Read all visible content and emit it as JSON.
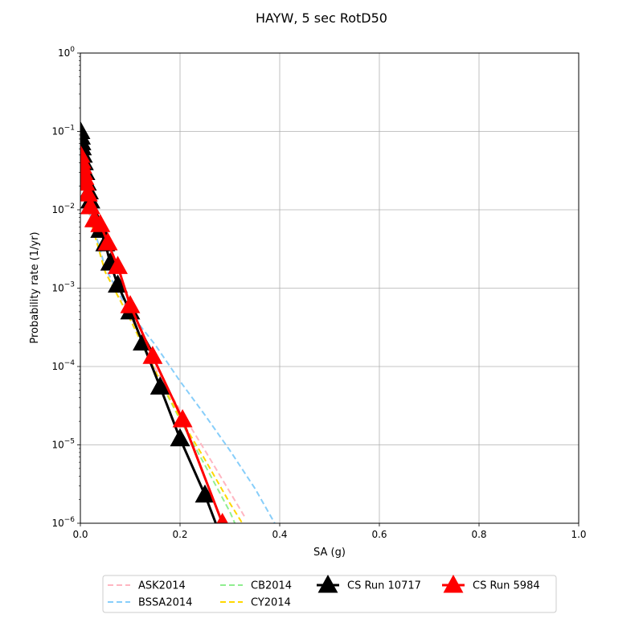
{
  "chart_data": {
    "type": "line",
    "title": "HAYW, 5 sec RotD50",
    "xlabel": "SA (g)",
    "ylabel": "Probability rate (1/yr)",
    "xscale": "linear",
    "yscale": "log",
    "xlim": [
      0,
      1.0
    ],
    "ylim": [
      1e-06,
      1
    ],
    "grid": true,
    "legend_position": "bottom-center",
    "x_ticks": [
      {
        "value": 0.0,
        "label": "0.0"
      },
      {
        "value": 0.2,
        "label": "0.2"
      },
      {
        "value": 0.4,
        "label": "0.4"
      },
      {
        "value": 0.6,
        "label": "0.6"
      },
      {
        "value": 0.8,
        "label": "0.8"
      },
      {
        "value": 1.0,
        "label": "1.0"
      }
    ],
    "y_ticks": [
      {
        "value": 1,
        "base": "10",
        "exp": "0"
      },
      {
        "value": 0.1,
        "base": "10",
        "exp": "−1"
      },
      {
        "value": 0.01,
        "base": "10",
        "exp": "−2"
      },
      {
        "value": 0.001,
        "base": "10",
        "exp": "−3"
      },
      {
        "value": 0.0001,
        "base": "10",
        "exp": "−4"
      },
      {
        "value": 1e-05,
        "base": "10",
        "exp": "−5"
      },
      {
        "value": 1e-06,
        "base": "10",
        "exp": "−6"
      }
    ],
    "series": [
      {
        "name": "ASK2014",
        "color": "#ffb6c1",
        "style": "dashed",
        "marker": "none",
        "x": [
          0.005,
          0.02,
          0.05,
          0.1,
          0.15,
          0.2,
          0.25,
          0.3,
          0.33
        ],
        "y": [
          0.025,
          0.0085,
          0.0018,
          0.00045,
          9.5e-05,
          2.8e-05,
          8.5e-06,
          2.5e-06,
          1.2e-06
        ]
      },
      {
        "name": "BSSA2014",
        "color": "#87cefa",
        "style": "dashed",
        "marker": "none",
        "x": [
          0.005,
          0.02,
          0.05,
          0.1,
          0.15,
          0.2,
          0.25,
          0.3,
          0.35,
          0.39
        ],
        "y": [
          0.025,
          0.0085,
          0.0018,
          0.00048,
          0.00019,
          6.5e-05,
          2.4e-05,
          8.5e-06,
          2.8e-06,
          1e-06
        ]
      },
      {
        "name": "CB2014",
        "color": "#90ee90",
        "style": "dashed",
        "marker": "none",
        "x": [
          0.005,
          0.02,
          0.05,
          0.1,
          0.15,
          0.2,
          0.25,
          0.3,
          0.31
        ],
        "y": [
          0.022,
          0.0075,
          0.0016,
          0.0004,
          8.5e-05,
          2.1e-05,
          5.5e-06,
          1.4e-06,
          1e-06
        ]
      },
      {
        "name": "CY2014",
        "color": "#ffd700",
        "style": "dashed",
        "marker": "none",
        "x": [
          0.005,
          0.02,
          0.05,
          0.1,
          0.15,
          0.2,
          0.25,
          0.3,
          0.325
        ],
        "y": [
          0.022,
          0.0075,
          0.0016,
          0.0004,
          8.8e-05,
          2.2e-05,
          6.5e-06,
          1.8e-06,
          1e-06
        ]
      },
      {
        "name": "CS Run 10717",
        "color": "#000000",
        "style": "solid",
        "marker": "triangle",
        "x": [
          0.0,
          0.001,
          0.002,
          0.003,
          0.005,
          0.007,
          0.01,
          0.013,
          0.017,
          0.02,
          0.03,
          0.04,
          0.05,
          0.06,
          0.075,
          0.1,
          0.125,
          0.16,
          0.2,
          0.25,
          0.285
        ],
        "y": [
          0.1,
          0.085,
          0.072,
          0.062,
          0.05,
          0.04,
          0.03,
          0.022,
          0.017,
          0.013,
          0.0075,
          0.0055,
          0.0037,
          0.0021,
          0.0011,
          0.0005,
          0.0002,
          5.5e-05,
          1.2e-05,
          2.3e-06,
          6e-07
        ]
      },
      {
        "name": "CS Run 5984",
        "color": "#ff0000",
        "style": "solid",
        "marker": "triangle",
        "x": [
          0.0,
          0.002,
          0.004,
          0.006,
          0.008,
          0.01,
          0.015,
          0.02,
          0.028,
          0.04,
          0.055,
          0.075,
          0.1,
          0.145,
          0.205,
          0.285
        ],
        "y": [
          0.05,
          0.042,
          0.036,
          0.03,
          0.026,
          0.022,
          0.016,
          0.011,
          0.0075,
          0.0065,
          0.0038,
          0.0019,
          0.0006,
          0.000135,
          2.1e-05,
          1e-06
        ]
      }
    ]
  }
}
